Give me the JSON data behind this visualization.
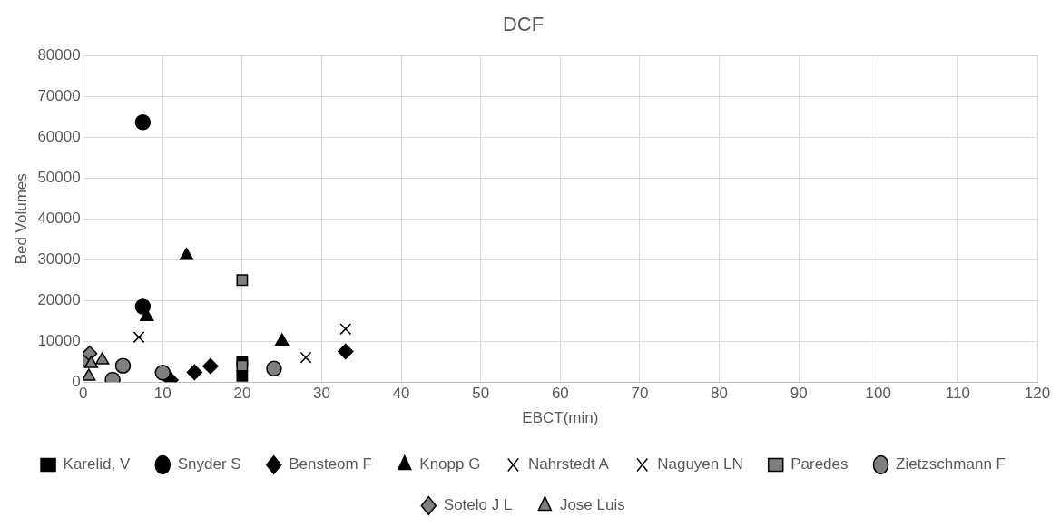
{
  "chart_data": {
    "type": "scatter",
    "title": "DCF",
    "xlabel": "EBCT(min)",
    "ylabel": "Bed Volumes",
    "xlim": [
      0,
      120
    ],
    "xticks": [
      0,
      10,
      20,
      30,
      40,
      50,
      60,
      70,
      80,
      90,
      100,
      110,
      120
    ],
    "ylim": [
      0,
      80000
    ],
    "yticks": [
      0,
      10000,
      20000,
      30000,
      40000,
      50000,
      60000,
      70000,
      80000
    ],
    "grid": true,
    "legend": "bottom",
    "series": [
      {
        "name": "Karelid, V",
        "color": "#000000",
        "marker": "square",
        "x": [
          20,
          20
        ],
        "values": [
          1500,
          5000
        ]
      },
      {
        "name": "Snyder S",
        "color": "#000000",
        "marker": "circle",
        "x": [
          7.5,
          7.5
        ],
        "values": [
          63700,
          18500
        ]
      },
      {
        "name": "Bensteom F",
        "color": "#000000",
        "marker": "diamond",
        "x": [
          11,
          14,
          16,
          33
        ],
        "values": [
          500,
          2400,
          3900,
          7500
        ]
      },
      {
        "name": "Knopp G",
        "color": "#000000",
        "marker": "triangle",
        "x": [
          8,
          13,
          25
        ],
        "values": [
          16000,
          31000,
          10000
        ]
      },
      {
        "name": "Nahrstedt A",
        "color": "#000000",
        "marker": "cross",
        "x": [
          28,
          33
        ],
        "values": [
          6000,
          13000
        ]
      },
      {
        "name": "Naguyen LN",
        "color": "#000000",
        "marker": "cross",
        "x": [
          7
        ],
        "values": [
          11000
        ]
      },
      {
        "name": "Paredes",
        "color": "#7f7f7f",
        "marker": "square",
        "x": [
          20,
          20
        ],
        "values": [
          25000,
          4000
        ]
      },
      {
        "name": "Zietzschmann F",
        "color": "#7f7f7f",
        "marker": "circle",
        "x": [
          3.7,
          5,
          10,
          24
        ],
        "values": [
          600,
          4000,
          2300,
          3300
        ]
      },
      {
        "name": "Sotelo J L",
        "color": "#7f7f7f",
        "marker": "diamond",
        "x": [
          0.2,
          0.8
        ],
        "values": [
          5500,
          7000
        ]
      },
      {
        "name": "Jose Luis",
        "color": "#7f7f7f",
        "marker": "triangle",
        "x": [
          0.7,
          1,
          2.4
        ],
        "values": [
          1400,
          4500,
          5400
        ]
      }
    ]
  }
}
